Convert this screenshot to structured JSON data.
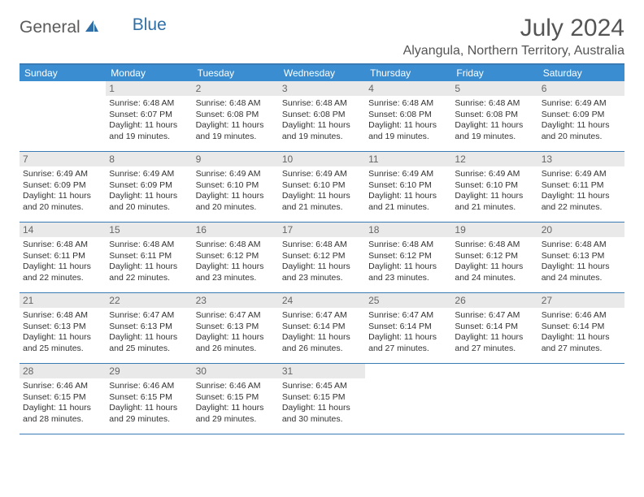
{
  "brand": {
    "part1": "General",
    "part2": "Blue"
  },
  "title": "July 2024",
  "location": "Alyangula, Northern Territory, Australia",
  "colors": {
    "header_bg": "#3a8dd0",
    "border": "#3a7ab5",
    "daynum_bg": "#e9e9e9",
    "text": "#333333",
    "title": "#555555"
  },
  "day_headers": [
    "Sunday",
    "Monday",
    "Tuesday",
    "Wednesday",
    "Thursday",
    "Friday",
    "Saturday"
  ],
  "weeks": [
    [
      null,
      {
        "n": "1",
        "sr": "6:48 AM",
        "ss": "6:07 PM",
        "dl": "11 hours and 19 minutes."
      },
      {
        "n": "2",
        "sr": "6:48 AM",
        "ss": "6:08 PM",
        "dl": "11 hours and 19 minutes."
      },
      {
        "n": "3",
        "sr": "6:48 AM",
        "ss": "6:08 PM",
        "dl": "11 hours and 19 minutes."
      },
      {
        "n": "4",
        "sr": "6:48 AM",
        "ss": "6:08 PM",
        "dl": "11 hours and 19 minutes."
      },
      {
        "n": "5",
        "sr": "6:48 AM",
        "ss": "6:08 PM",
        "dl": "11 hours and 19 minutes."
      },
      {
        "n": "6",
        "sr": "6:49 AM",
        "ss": "6:09 PM",
        "dl": "11 hours and 20 minutes."
      }
    ],
    [
      {
        "n": "7",
        "sr": "6:49 AM",
        "ss": "6:09 PM",
        "dl": "11 hours and 20 minutes."
      },
      {
        "n": "8",
        "sr": "6:49 AM",
        "ss": "6:09 PM",
        "dl": "11 hours and 20 minutes."
      },
      {
        "n": "9",
        "sr": "6:49 AM",
        "ss": "6:10 PM",
        "dl": "11 hours and 20 minutes."
      },
      {
        "n": "10",
        "sr": "6:49 AM",
        "ss": "6:10 PM",
        "dl": "11 hours and 21 minutes."
      },
      {
        "n": "11",
        "sr": "6:49 AM",
        "ss": "6:10 PM",
        "dl": "11 hours and 21 minutes."
      },
      {
        "n": "12",
        "sr": "6:49 AM",
        "ss": "6:10 PM",
        "dl": "11 hours and 21 minutes."
      },
      {
        "n": "13",
        "sr": "6:49 AM",
        "ss": "6:11 PM",
        "dl": "11 hours and 22 minutes."
      }
    ],
    [
      {
        "n": "14",
        "sr": "6:48 AM",
        "ss": "6:11 PM",
        "dl": "11 hours and 22 minutes."
      },
      {
        "n": "15",
        "sr": "6:48 AM",
        "ss": "6:11 PM",
        "dl": "11 hours and 22 minutes."
      },
      {
        "n": "16",
        "sr": "6:48 AM",
        "ss": "6:12 PM",
        "dl": "11 hours and 23 minutes."
      },
      {
        "n": "17",
        "sr": "6:48 AM",
        "ss": "6:12 PM",
        "dl": "11 hours and 23 minutes."
      },
      {
        "n": "18",
        "sr": "6:48 AM",
        "ss": "6:12 PM",
        "dl": "11 hours and 23 minutes."
      },
      {
        "n": "19",
        "sr": "6:48 AM",
        "ss": "6:12 PM",
        "dl": "11 hours and 24 minutes."
      },
      {
        "n": "20",
        "sr": "6:48 AM",
        "ss": "6:13 PM",
        "dl": "11 hours and 24 minutes."
      }
    ],
    [
      {
        "n": "21",
        "sr": "6:48 AM",
        "ss": "6:13 PM",
        "dl": "11 hours and 25 minutes."
      },
      {
        "n": "22",
        "sr": "6:47 AM",
        "ss": "6:13 PM",
        "dl": "11 hours and 25 minutes."
      },
      {
        "n": "23",
        "sr": "6:47 AM",
        "ss": "6:13 PM",
        "dl": "11 hours and 26 minutes."
      },
      {
        "n": "24",
        "sr": "6:47 AM",
        "ss": "6:14 PM",
        "dl": "11 hours and 26 minutes."
      },
      {
        "n": "25",
        "sr": "6:47 AM",
        "ss": "6:14 PM",
        "dl": "11 hours and 27 minutes."
      },
      {
        "n": "26",
        "sr": "6:47 AM",
        "ss": "6:14 PM",
        "dl": "11 hours and 27 minutes."
      },
      {
        "n": "27",
        "sr": "6:46 AM",
        "ss": "6:14 PM",
        "dl": "11 hours and 27 minutes."
      }
    ],
    [
      {
        "n": "28",
        "sr": "6:46 AM",
        "ss": "6:15 PM",
        "dl": "11 hours and 28 minutes."
      },
      {
        "n": "29",
        "sr": "6:46 AM",
        "ss": "6:15 PM",
        "dl": "11 hours and 29 minutes."
      },
      {
        "n": "30",
        "sr": "6:46 AM",
        "ss": "6:15 PM",
        "dl": "11 hours and 29 minutes."
      },
      {
        "n": "31",
        "sr": "6:45 AM",
        "ss": "6:15 PM",
        "dl": "11 hours and 30 minutes."
      },
      null,
      null,
      null
    ]
  ],
  "labels": {
    "sunrise": "Sunrise:",
    "sunset": "Sunset:",
    "daylight": "Daylight:"
  }
}
